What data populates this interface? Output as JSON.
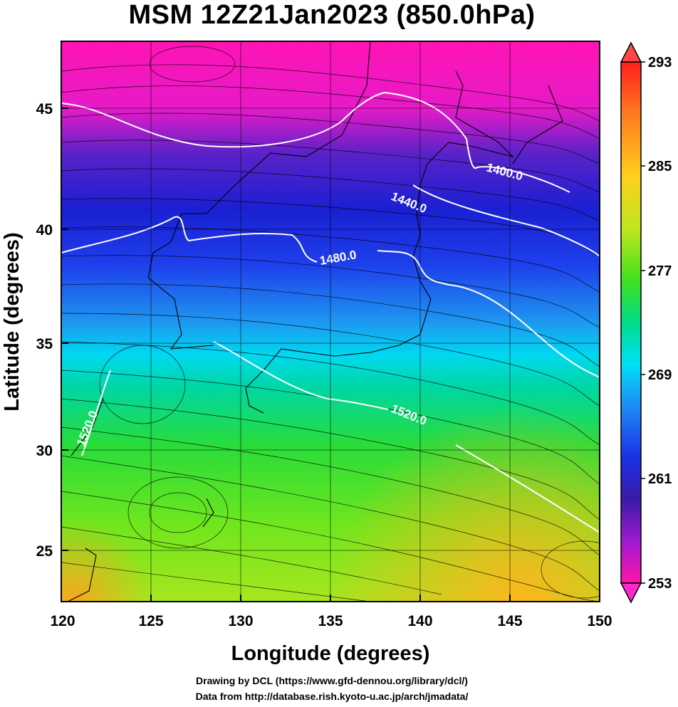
{
  "title": "MSM 12Z21Jan2023 (850.0hPa)",
  "x_axis": {
    "label": "Longitude (degrees)",
    "ticks": [
      "120",
      "125",
      "130",
      "135",
      "140",
      "145",
      "150"
    ]
  },
  "y_axis": {
    "label": "Latitude  (degrees)",
    "ticks": [
      "45",
      "40",
      "35",
      "30",
      "25"
    ]
  },
  "colorbar": {
    "ticks": [
      "293",
      "285",
      "277",
      "269",
      "261",
      "253"
    ],
    "colors": [
      "#ff1493",
      "#d21ad2",
      "#7a2ad0",
      "#2a1ab4",
      "#1a3cf0",
      "#1e8cf5",
      "#00e1f5",
      "#00dc8c",
      "#1ee11e",
      "#8ce61e",
      "#e6e61e",
      "#ffc81e",
      "#ff8c1e",
      "#ff3c1e",
      "#ff1e1e"
    ]
  },
  "contour_labels": [
    "1400.0",
    "1440.0",
    "1480.0",
    "1520.0",
    "1520.0"
  ],
  "credits": {
    "line1": "Drawing by DCL (https://www.gfd-dennou.org/library/dcl/)",
    "line2": "Data from http://database.rish.kyoto-u.ac.jp/arch/jmadata/"
  }
}
